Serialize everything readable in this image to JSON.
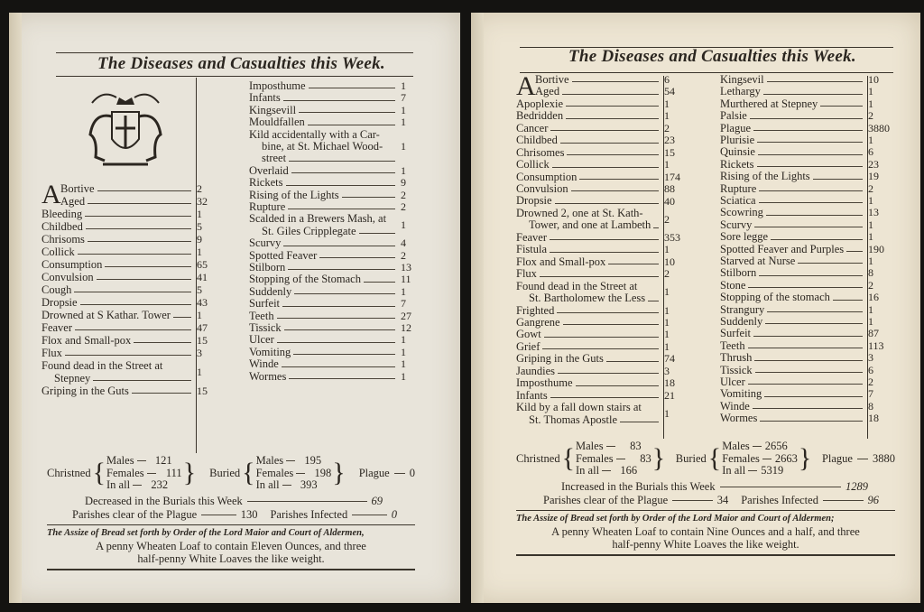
{
  "left_page": {
    "title": "The Diseases and Casualties this Week.",
    "col1": [
      {
        "lines": [
          "Bortive"
        ],
        "count": "2",
        "dropcap": "A"
      },
      {
        "lines": [
          "Aged"
        ],
        "count": "32"
      },
      {
        "lines": [
          "Bleeding"
        ],
        "count": "1"
      },
      {
        "lines": [
          "Childbed"
        ],
        "count": "5"
      },
      {
        "lines": [
          "Chrisoms"
        ],
        "count": "9"
      },
      {
        "lines": [
          "Collick"
        ],
        "count": "1"
      },
      {
        "lines": [
          "Consumption"
        ],
        "count": "65"
      },
      {
        "lines": [
          "Convulsion"
        ],
        "count": "41"
      },
      {
        "lines": [
          "Cough"
        ],
        "count": "5"
      },
      {
        "lines": [
          "Dropsie"
        ],
        "count": "43"
      },
      {
        "lines": [
          "Drowned at S Kathar. Tower"
        ],
        "count": "1"
      },
      {
        "lines": [
          "Feaver"
        ],
        "count": "47"
      },
      {
        "lines": [
          "Flox and Small-pox"
        ],
        "count": "15"
      },
      {
        "lines": [
          "Flux"
        ],
        "count": "3"
      },
      {
        "lines": [
          "Found dead in the Street at",
          "Stepney"
        ],
        "count": "1"
      },
      {
        "lines": [
          "Griping in the Guts"
        ],
        "count": "15"
      }
    ],
    "col2": [
      {
        "lines": [
          "Imposthume"
        ],
        "count": "1"
      },
      {
        "lines": [
          "Infants"
        ],
        "count": "7"
      },
      {
        "lines": [
          "Kingsevill"
        ],
        "count": "1"
      },
      {
        "lines": [
          "Mouldfallen"
        ],
        "count": "1"
      },
      {
        "lines": [
          "Kild accidentally with a Car-",
          "bine, at St. Michael Wood-",
          "street"
        ],
        "count": "1"
      },
      {
        "lines": [
          "Overlaid"
        ],
        "count": "1"
      },
      {
        "lines": [
          "Rickets"
        ],
        "count": "9"
      },
      {
        "lines": [
          "Rising of the Lights"
        ],
        "count": "2"
      },
      {
        "lines": [
          "Rupture"
        ],
        "count": "2"
      },
      {
        "lines": [
          "Scalded in a Brewers Mash, at",
          "St. Giles Cripplegate"
        ],
        "count": "1"
      },
      {
        "lines": [
          "Scurvy"
        ],
        "count": "4"
      },
      {
        "lines": [
          "Spotted Feaver"
        ],
        "count": "2"
      },
      {
        "lines": [
          "Stilborn"
        ],
        "count": "13"
      },
      {
        "lines": [
          "Stopping of the Stomach"
        ],
        "count": "11"
      },
      {
        "lines": [
          "Suddenly"
        ],
        "count": "1"
      },
      {
        "lines": [
          "Surfeit"
        ],
        "count": "7"
      },
      {
        "lines": [
          "Teeth"
        ],
        "count": "27"
      },
      {
        "lines": [
          "Tissick"
        ],
        "count": "12"
      },
      {
        "lines": [
          "Ulcer"
        ],
        "count": "1"
      },
      {
        "lines": [
          "Vomiting"
        ],
        "count": "1"
      },
      {
        "lines": [
          "Winde"
        ],
        "count": "1"
      },
      {
        "lines": [
          "Wormes"
        ],
        "count": "1"
      }
    ],
    "christned": {
      "label": "Christned",
      "males_label": "Males",
      "males": "121",
      "females_label": "Females",
      "females": "111",
      "all_label": "In all",
      "all": "232"
    },
    "buried": {
      "label": "Buried",
      "males_label": "Males",
      "males": "195",
      "females_label": "Females",
      "females": "198",
      "all_label": "In all",
      "all": "393",
      "plague_label": "Plague",
      "plague": "0"
    },
    "change_label": "Decreased in the Burials this Week",
    "change_value": "69",
    "parishes_clear_label": "Parishes clear of the Plague",
    "parishes_clear": "130",
    "parishes_infected_label": "Parishes Infected",
    "parishes_infected": "0",
    "assize": "The Assize of Bread set forth by Order of the Lord Maior and Court of Aldermen,",
    "bread_line1": "A penny Wheaten Loaf to contain Eleven Ounces, and three",
    "bread_line2": "half-penny White Loaves the like weight."
  },
  "right_page": {
    "title": "The Diseases and Casualties this Week.",
    "col1": [
      {
        "lines": [
          "Bortive"
        ],
        "count": "6",
        "dropcap": "A"
      },
      {
        "lines": [
          "Aged"
        ],
        "count": "54"
      },
      {
        "lines": [
          "Apoplexie"
        ],
        "count": "1"
      },
      {
        "lines": [
          "Bedridden"
        ],
        "count": "1"
      },
      {
        "lines": [
          "Cancer"
        ],
        "count": "2"
      },
      {
        "lines": [
          "Childbed"
        ],
        "count": "23"
      },
      {
        "lines": [
          "Chrisomes"
        ],
        "count": "15"
      },
      {
        "lines": [
          "Collick"
        ],
        "count": "1"
      },
      {
        "lines": [
          "Consumption"
        ],
        "count": "174"
      },
      {
        "lines": [
          "Convulsion"
        ],
        "count": "88"
      },
      {
        "lines": [
          "Dropsie"
        ],
        "count": "40"
      },
      {
        "lines": [
          "Drowned 2, one at St. Kath-",
          "Tower, and one at Lambeth"
        ],
        "count": "2"
      },
      {
        "lines": [
          "Feaver"
        ],
        "count": "353"
      },
      {
        "lines": [
          "Fistula"
        ],
        "count": "1"
      },
      {
        "lines": [
          "Flox and Small-pox"
        ],
        "count": "10"
      },
      {
        "lines": [
          "Flux"
        ],
        "count": "2"
      },
      {
        "lines": [
          "Found dead in the Street at",
          "St. Bartholomew the Less"
        ],
        "count": "1"
      },
      {
        "lines": [
          "Frighted"
        ],
        "count": "1"
      },
      {
        "lines": [
          "Gangrene"
        ],
        "count": "1"
      },
      {
        "lines": [
          "Gowt"
        ],
        "count": "1"
      },
      {
        "lines": [
          "Grief"
        ],
        "count": "1"
      },
      {
        "lines": [
          "Griping in the Guts"
        ],
        "count": "74"
      },
      {
        "lines": [
          "Jaundies"
        ],
        "count": "3"
      },
      {
        "lines": [
          "Imposthume"
        ],
        "count": "18"
      },
      {
        "lines": [
          "Infants"
        ],
        "count": "21"
      },
      {
        "lines": [
          "Kild by a fall down stairs at",
          "St. Thomas Apostle"
        ],
        "count": "1"
      }
    ],
    "col2": [
      {
        "lines": [
          "Kingsevil"
        ],
        "count": "10"
      },
      {
        "lines": [
          "Lethargy"
        ],
        "count": "1"
      },
      {
        "lines": [
          "Murthered at Stepney"
        ],
        "count": "1"
      },
      {
        "lines": [
          "Palsie"
        ],
        "count": "2"
      },
      {
        "lines": [
          "Plague"
        ],
        "count": "3880"
      },
      {
        "lines": [
          "Plurisie"
        ],
        "count": "1"
      },
      {
        "lines": [
          "Quinsie"
        ],
        "count": "6"
      },
      {
        "lines": [
          "Rickets"
        ],
        "count": "23"
      },
      {
        "lines": [
          "Rising of the Lights"
        ],
        "count": "19"
      },
      {
        "lines": [
          "Rupture"
        ],
        "count": "2"
      },
      {
        "lines": [
          "Sciatica"
        ],
        "count": "1"
      },
      {
        "lines": [
          "Scowring"
        ],
        "count": "13"
      },
      {
        "lines": [
          "Scurvy"
        ],
        "count": "1"
      },
      {
        "lines": [
          "Sore legge"
        ],
        "count": "1"
      },
      {
        "lines": [
          "Spotted Feaver and Purples"
        ],
        "count": "190"
      },
      {
        "lines": [
          "Starved at Nurse"
        ],
        "count": "1"
      },
      {
        "lines": [
          "Stilborn"
        ],
        "count": "8"
      },
      {
        "lines": [
          "Stone"
        ],
        "count": "2"
      },
      {
        "lines": [
          "Stopping of the stomach"
        ],
        "count": "16"
      },
      {
        "lines": [
          "Strangury"
        ],
        "count": "1"
      },
      {
        "lines": [
          "Suddenly"
        ],
        "count": "1"
      },
      {
        "lines": [
          "Surfeit"
        ],
        "count": "87"
      },
      {
        "lines": [
          "Teeth"
        ],
        "count": "113"
      },
      {
        "lines": [
          "Thrush"
        ],
        "count": "3"
      },
      {
        "lines": [
          "Tissick"
        ],
        "count": "6"
      },
      {
        "lines": [
          "Ulcer"
        ],
        "count": "2"
      },
      {
        "lines": [
          "Vomiting"
        ],
        "count": "7"
      },
      {
        "lines": [
          "Winde"
        ],
        "count": "8"
      },
      {
        "lines": [
          "Wormes"
        ],
        "count": "18"
      }
    ],
    "christned": {
      "label": "Christned",
      "males_label": "Males",
      "males": "83",
      "females_label": "Females",
      "females": "83",
      "all_label": "In all",
      "all": "166"
    },
    "buried": {
      "label": "Buried",
      "males_label": "Males",
      "males": "2656",
      "females_label": "Females",
      "females": "2663",
      "all_label": "In all",
      "all": "5319",
      "plague_label": "Plague",
      "plague": "3880"
    },
    "change_label": "Increased in the Burials this Week",
    "change_value": "1289",
    "parishes_clear_label": "Parishes clear of the Plague",
    "parishes_clear": "34",
    "parishes_infected_label": "Parishes Infected",
    "parishes_infected": "96",
    "assize": "The Assize of Bread set forth by Order of the Lord Maior and Court of Aldermen;",
    "bread_line1": "A penny Wheaten Loaf to contain Nine Ounces and a half, and three",
    "bread_line2": "half-penny White Loaves the like weight."
  },
  "colors": {
    "paper_left": "#e8e4da",
    "paper_right": "#ede5d3",
    "ink": "#2b2620",
    "background": "#141311"
  }
}
